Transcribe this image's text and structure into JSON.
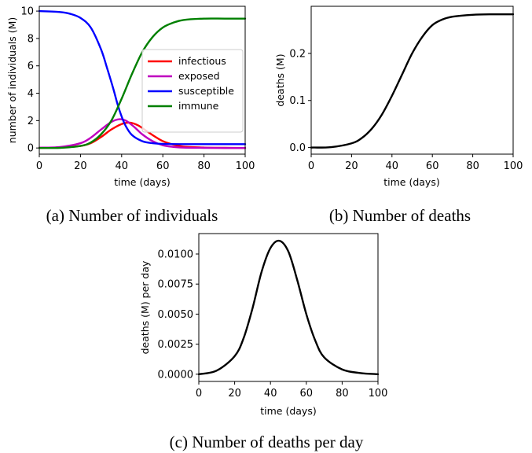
{
  "chart_data": [
    {
      "type": "line",
      "caption": "(a) Number of individuals",
      "xlabel": "time (days)",
      "ylabel": "number of individuals (M)",
      "xlim": [
        0,
        100
      ],
      "ylim": [
        -0.45,
        10.35
      ],
      "xticks": [
        "0",
        "20",
        "40",
        "60",
        "80",
        "100"
      ],
      "yticks": [
        "0",
        "2",
        "4",
        "6",
        "8",
        "10"
      ],
      "legend_position": "center-right",
      "series": [
        {
          "name": "infectious",
          "color": "#ff0000",
          "x": [
            0,
            10,
            20,
            25,
            30,
            35,
            40,
            44,
            48,
            52,
            56,
            60,
            65,
            70,
            80,
            90,
            100
          ],
          "y": [
            0.01,
            0.04,
            0.15,
            0.35,
            0.8,
            1.35,
            1.75,
            1.85,
            1.65,
            1.25,
            0.85,
            0.5,
            0.25,
            0.1,
            0.03,
            0.01,
            0.0
          ]
        },
        {
          "name": "exposed",
          "color": "#bf00bf",
          "x": [
            0,
            10,
            20,
            25,
            30,
            35,
            39,
            42,
            46,
            50,
            55,
            60,
            65,
            70,
            80,
            90,
            100
          ],
          "y": [
            0.02,
            0.07,
            0.35,
            0.75,
            1.35,
            1.9,
            2.1,
            2.0,
            1.55,
            1.0,
            0.5,
            0.2,
            0.08,
            0.03,
            0.01,
            0.0,
            0.0
          ]
        },
        {
          "name": "susceptible",
          "color": "#0000ff",
          "x": [
            0,
            10,
            15,
            20,
            25,
            30,
            33,
            36,
            38,
            40,
            42,
            45,
            50,
            55,
            60,
            70,
            80,
            100
          ],
          "y": [
            10.0,
            9.93,
            9.8,
            9.5,
            8.8,
            7.2,
            5.8,
            4.3,
            3.2,
            2.3,
            1.6,
            0.95,
            0.5,
            0.35,
            0.3,
            0.28,
            0.28,
            0.28
          ]
        },
        {
          "name": "immune",
          "color": "#008000",
          "x": [
            0,
            10,
            20,
            25,
            30,
            35,
            40,
            45,
            50,
            55,
            60,
            65,
            70,
            80,
            90,
            100
          ],
          "y": [
            0.0,
            0.01,
            0.15,
            0.4,
            1.0,
            2.0,
            3.6,
            5.4,
            7.0,
            8.1,
            8.8,
            9.15,
            9.35,
            9.45,
            9.45,
            9.45
          ]
        }
      ]
    },
    {
      "type": "line",
      "caption": "(b) Number of deaths",
      "xlabel": "time (days)",
      "ylabel": "deaths (M)",
      "xlim": [
        0,
        100
      ],
      "ylim": [
        -0.014,
        0.3
      ],
      "xticks": [
        "0",
        "20",
        "40",
        "60",
        "80",
        "100"
      ],
      "yticks": [
        "0.0",
        "0.1",
        "0.2"
      ],
      "series": [
        {
          "color": "#000000",
          "x": [
            0,
            10,
            20,
            25,
            30,
            35,
            40,
            45,
            50,
            55,
            60,
            65,
            70,
            80,
            90,
            100
          ],
          "y": [
            0.0,
            0.001,
            0.009,
            0.02,
            0.04,
            0.07,
            0.11,
            0.155,
            0.2,
            0.235,
            0.26,
            0.272,
            0.278,
            0.282,
            0.283,
            0.283
          ]
        }
      ]
    },
    {
      "type": "line",
      "caption": "(c) Number of deaths per day",
      "xlabel": "time (days)",
      "ylabel": "deaths (M) per day",
      "xlim": [
        0,
        100
      ],
      "ylim": [
        -0.0006,
        0.0117
      ],
      "xticks": [
        "0",
        "20",
        "40",
        "60",
        "80",
        "100"
      ],
      "yticks": [
        "0.0000",
        "0.0025",
        "0.0050",
        "0.0075",
        "0.0100"
      ],
      "series": [
        {
          "color": "#000000",
          "x": [
            0,
            10,
            20,
            25,
            30,
            35,
            40,
            45,
            50,
            55,
            60,
            65,
            70,
            80,
            90,
            100
          ],
          "y": [
            0.0,
            0.0003,
            0.0015,
            0.003,
            0.0055,
            0.0085,
            0.0105,
            0.0111,
            0.0102,
            0.0078,
            0.005,
            0.0028,
            0.0014,
            0.0004,
            0.0001,
            0.0
          ]
        }
      ]
    }
  ]
}
